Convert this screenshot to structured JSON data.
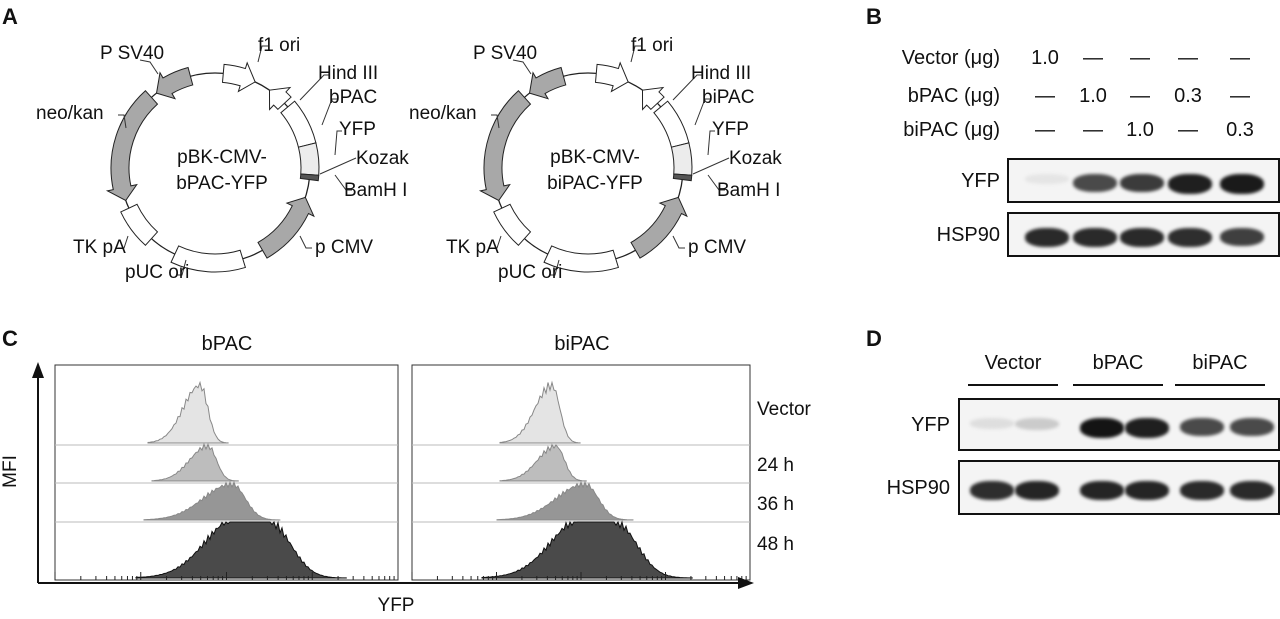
{
  "panels": {
    "a": "A",
    "b": "B",
    "c": "C",
    "d": "D"
  },
  "panel_a": {
    "plasmids": [
      {
        "name_line1": "pBK-CMV-",
        "name_line2": "bPAC-YFP",
        "labels": {
          "psv40": "P SV40",
          "f1ori": "f1 ori",
          "hind": "Hind III",
          "insert": "bPAC",
          "yfp": "YFP",
          "kozak": "Kozak",
          "bamh": "BamH I",
          "neokan": "neo/kan",
          "tkpa": "TK pA",
          "puc": "pUC ori",
          "pcmv": "p CMV"
        }
      },
      {
        "name_line1": "pBK-CMV-",
        "name_line2": "biPAC-YFP",
        "labels": {
          "psv40": "P SV40",
          "f1ori": "f1 ori",
          "hind": "Hind III",
          "insert": "biPAC",
          "yfp": "YFP",
          "kozak": "Kozak",
          "bamh": "BamH I",
          "neokan": "neo/kan",
          "tkpa": "TK pA",
          "puc": "pUC ori",
          "pcmv": "p CMV"
        }
      }
    ]
  },
  "panel_b": {
    "rows": [
      {
        "label": "Vector (μg)",
        "values": [
          "1.0",
          "—",
          "—",
          "—",
          "—"
        ]
      },
      {
        "label": "bPAC (μg)",
        "values": [
          "—",
          "1.0",
          "—",
          "0.3",
          "—"
        ]
      },
      {
        "label": "biPAC (μg)",
        "values": [
          "—",
          "—",
          "1.0",
          "—",
          "0.3"
        ]
      }
    ],
    "blots": [
      {
        "label": "YFP",
        "intensity": [
          0.03,
          0.75,
          0.82,
          0.95,
          0.97
        ]
      },
      {
        "label": "HSP90",
        "intensity": [
          0.9,
          0.9,
          0.9,
          0.88,
          0.8
        ]
      }
    ]
  },
  "panel_c": {
    "groups": [
      "bPAC",
      "biPAC"
    ],
    "conditions": [
      "Vector",
      "24 h",
      "36 h",
      "48 h"
    ],
    "y_axis": "MFI",
    "x_axis": "YFP",
    "fill_colors": [
      "#e4e4e4",
      "#bdbdbd",
      "#969696",
      "#4a4a4a"
    ]
  },
  "panel_d": {
    "groups": [
      "Vector",
      "bPAC",
      "biPAC"
    ],
    "blots": [
      {
        "label": "YFP",
        "intensity": [
          0.06,
          0.15,
          1.0,
          0.95,
          0.75,
          0.75
        ]
      },
      {
        "label": "HSP90",
        "intensity": [
          0.88,
          0.92,
          0.92,
          0.92,
          0.9,
          0.9
        ]
      }
    ]
  }
}
